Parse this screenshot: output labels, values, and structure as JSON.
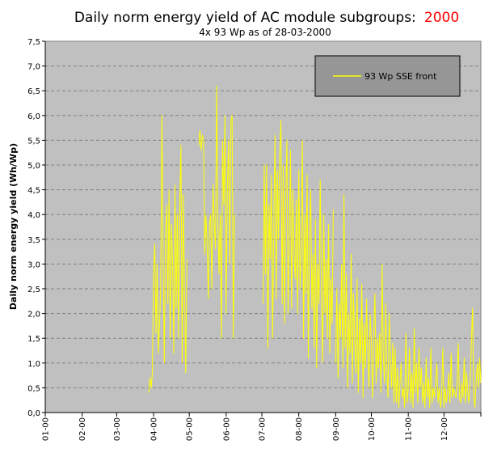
{
  "chart_data": {
    "type": "line",
    "title": "Daily norm energy yield of AC module subgroups:",
    "title_year": "2000",
    "subtitle": "4x 93 Wp as of 28-03-2000",
    "ylabel": "Daily norm energy yield (Wh/Wp)",
    "xlabel": "",
    "ylim": [
      0,
      7.5
    ],
    "xlim": [
      0,
      366
    ],
    "y_ticks": [
      "0,0",
      "0,5",
      "1,0",
      "1,5",
      "2,0",
      "2,5",
      "3,0",
      "3,5",
      "4,0",
      "4,5",
      "5,0",
      "5,5",
      "6,0",
      "6,5",
      "7,0",
      "7,5"
    ],
    "x_ticks": [
      "01-00",
      "02-00",
      "03-00",
      "04-00",
      "05-00",
      "06-00",
      "07-00",
      "08-00",
      "09-00",
      "10-00",
      "11-00",
      "12-00"
    ],
    "grid": true,
    "legend_position": "top-right",
    "colors": {
      "plot_background": "#c0c0c0",
      "line": "#ffff00",
      "grid": "#808080",
      "legend_background": "#969696",
      "title_year": "#ff0000"
    },
    "series": [
      {
        "name": "93 Wp SSE front",
        "x_unit": "day of year 2000",
        "points": [
          [
            87,
            0.4
          ],
          [
            88,
            0.7
          ],
          [
            89,
            0.5
          ],
          [
            90,
            0.8
          ],
          [
            91,
            2.8
          ],
          [
            92,
            3.4
          ],
          [
            93,
            1.6
          ],
          [
            94,
            3.0
          ],
          [
            95,
            1.2
          ],
          [
            96,
            1.8
          ],
          [
            97,
            2.5
          ],
          [
            98,
            6.0
          ],
          [
            99,
            3.2
          ],
          [
            100,
            1.0
          ],
          [
            101,
            3.5
          ],
          [
            102,
            4.2
          ],
          [
            103,
            2.2
          ],
          [
            104,
            4.5
          ],
          [
            105,
            1.5
          ],
          [
            106,
            3.8
          ],
          [
            107,
            3.0
          ],
          [
            108,
            1.2
          ],
          [
            109,
            4.6
          ],
          [
            110,
            2.1
          ],
          [
            111,
            4.0
          ],
          [
            112,
            1.5
          ],
          [
            113,
            4.2
          ],
          [
            114,
            5.4
          ],
          [
            115,
            1.0
          ],
          [
            116,
            4.4
          ],
          [
            117,
            2.5
          ],
          [
            118,
            0.8
          ],
          [
            119,
            3.1
          ],
          [
            129,
            5.4
          ],
          [
            130,
            5.7
          ],
          [
            131,
            5.3
          ],
          [
            132,
            5.6
          ],
          [
            133,
            5.5
          ],
          [
            134,
            3.2
          ],
          [
            135,
            4.0
          ],
          [
            136,
            3.4
          ],
          [
            137,
            2.3
          ],
          [
            138,
            3.8
          ],
          [
            139,
            4.0
          ],
          [
            140,
            2.5
          ],
          [
            141,
            4.6
          ],
          [
            142,
            3.8
          ],
          [
            143,
            3.3
          ],
          [
            144,
            6.6
          ],
          [
            145,
            3.9
          ],
          [
            146,
            2.8
          ],
          [
            147,
            4.0
          ],
          [
            148,
            1.5
          ],
          [
            149,
            5.5
          ],
          [
            150,
            4.2
          ],
          [
            151,
            6.0
          ],
          [
            152,
            2.0
          ],
          [
            153,
            4.5
          ],
          [
            154,
            5.5
          ],
          [
            155,
            3.0
          ],
          [
            156,
            5.9
          ],
          [
            157,
            6.0
          ],
          [
            158,
            1.5
          ],
          [
            159,
            4.0
          ],
          [
            183,
            2.2
          ],
          [
            184,
            5.0
          ],
          [
            185,
            2.8
          ],
          [
            186,
            5.0
          ],
          [
            187,
            1.3
          ],
          [
            188,
            4.2
          ],
          [
            189,
            3.1
          ],
          [
            190,
            4.8
          ],
          [
            191,
            1.5
          ],
          [
            192,
            3.8
          ],
          [
            193,
            5.6
          ],
          [
            194,
            2.3
          ],
          [
            195,
            4.9
          ],
          [
            196,
            3.5
          ],
          [
            197,
            5.2
          ],
          [
            198,
            5.9
          ],
          [
            199,
            2.2
          ],
          [
            200,
            5.0
          ],
          [
            201,
            1.8
          ],
          [
            202,
            4.3
          ],
          [
            203,
            5.5
          ],
          [
            204,
            2.0
          ],
          [
            205,
            3.5
          ],
          [
            206,
            5.3
          ],
          [
            207,
            2.1
          ],
          [
            208,
            4.5
          ],
          [
            209,
            3.2
          ],
          [
            210,
            2.7
          ],
          [
            211,
            4.3
          ],
          [
            212,
            2.0
          ],
          [
            213,
            4.9
          ],
          [
            214,
            2.5
          ],
          [
            215,
            3.3
          ],
          [
            216,
            5.5
          ],
          [
            217,
            1.5
          ],
          [
            218,
            4.0
          ],
          [
            219,
            2.4
          ],
          [
            220,
            4.8
          ],
          [
            221,
            1.1
          ],
          [
            222,
            3.6
          ],
          [
            223,
            4.5
          ],
          [
            224,
            2.1
          ],
          [
            225,
            3.2
          ],
          [
            226,
            1.3
          ],
          [
            227,
            3.9
          ],
          [
            228,
            0.9
          ],
          [
            229,
            3.0
          ],
          [
            230,
            2.2
          ],
          [
            231,
            4.7
          ],
          [
            232,
            2.5
          ],
          [
            233,
            1.0
          ],
          [
            234,
            4.0
          ],
          [
            235,
            2.0
          ],
          [
            236,
            3.1
          ],
          [
            237,
            1.5
          ],
          [
            238,
            3.8
          ],
          [
            239,
            1.2
          ],
          [
            240,
            2.7
          ],
          [
            241,
            1.8
          ],
          [
            242,
            4.1
          ],
          [
            244,
            1.0
          ],
          [
            245,
            2.5
          ],
          [
            246,
            0.7
          ],
          [
            247,
            2.2
          ],
          [
            248,
            1.5
          ],
          [
            249,
            3.0
          ],
          [
            250,
            0.9
          ],
          [
            251,
            4.4
          ],
          [
            252,
            1.3
          ],
          [
            253,
            2.8
          ],
          [
            254,
            0.5
          ],
          [
            255,
            2.0
          ],
          [
            256,
            1.2
          ],
          [
            257,
            3.2
          ],
          [
            258,
            0.6
          ],
          [
            259,
            2.4
          ],
          [
            260,
            1.5
          ],
          [
            261,
            0.8
          ],
          [
            262,
            2.7
          ],
          [
            263,
            0.4
          ],
          [
            264,
            1.9
          ],
          [
            265,
            1.0
          ],
          [
            266,
            2.6
          ],
          [
            267,
            0.3
          ],
          [
            268,
            1.8
          ],
          [
            269,
            0.9
          ],
          [
            270,
            2.3
          ],
          [
            271,
            1.2
          ],
          [
            272,
            0.5
          ],
          [
            273,
            2.0
          ],
          [
            274,
            1.4
          ],
          [
            275,
            0.3
          ],
          [
            276,
            1.7
          ],
          [
            277,
            2.4
          ],
          [
            278,
            0.6
          ],
          [
            279,
            1.5
          ],
          [
            280,
            0.9
          ],
          [
            281,
            1.6
          ],
          [
            282,
            0.4
          ],
          [
            283,
            3.0
          ],
          [
            284,
            1.2
          ],
          [
            285,
            0.6
          ],
          [
            286,
            2.2
          ],
          [
            287,
            0.9
          ],
          [
            288,
            0.3
          ],
          [
            289,
            2.0
          ],
          [
            290,
            1.1
          ],
          [
            291,
            0.5
          ],
          [
            292,
            1.4
          ],
          [
            293,
            0.2
          ],
          [
            294,
            1.3
          ],
          [
            295,
            0.2
          ],
          [
            296,
            0.9
          ],
          [
            297,
            0.1
          ],
          [
            298,
            0.6
          ],
          [
            299,
            1.0
          ],
          [
            300,
            0.3
          ],
          [
            301,
            0.5
          ],
          [
            302,
            0.1
          ],
          [
            303,
            1.6
          ],
          [
            304,
            0.2
          ],
          [
            305,
            0.5
          ],
          [
            306,
            1.3
          ],
          [
            307,
            0.2
          ],
          [
            308,
            0.8
          ],
          [
            309,
            0.1
          ],
          [
            310,
            1.7
          ],
          [
            311,
            0.4
          ],
          [
            312,
            1.0
          ],
          [
            313,
            0.2
          ],
          [
            314,
            1.3
          ],
          [
            315,
            0.5
          ],
          [
            316,
            0.9
          ],
          [
            317,
            0.2
          ],
          [
            318,
            0.6
          ],
          [
            319,
            0.1
          ],
          [
            320,
            1.1
          ],
          [
            321,
            0.3
          ],
          [
            322,
            0.7
          ],
          [
            323,
            0.1
          ],
          [
            324,
            1.3
          ],
          [
            325,
            0.2
          ],
          [
            326,
            0.5
          ],
          [
            327,
            0.3
          ],
          [
            328,
            0.6
          ],
          [
            329,
            1.0
          ],
          [
            330,
            0.2
          ],
          [
            331,
            0.5
          ],
          [
            332,
            0.1
          ],
          [
            333,
            0.3
          ],
          [
            334,
            1.3
          ],
          [
            335,
            0.1
          ],
          [
            336,
            0.5
          ],
          [
            337,
            0.2
          ],
          [
            338,
            0.4
          ],
          [
            339,
            0.8
          ],
          [
            340,
            0.2
          ],
          [
            341,
            1.2
          ],
          [
            342,
            0.3
          ],
          [
            343,
            0.5
          ],
          [
            344,
            0.4
          ],
          [
            345,
            0.3
          ],
          [
            346,
            0.6
          ],
          [
            347,
            1.4
          ],
          [
            348,
            0.3
          ],
          [
            349,
            0.2
          ],
          [
            350,
            0.6
          ],
          [
            351,
            0.3
          ],
          [
            352,
            1.1
          ],
          [
            353,
            0.2
          ],
          [
            354,
            0.8
          ],
          [
            355,
            0.4
          ],
          [
            356,
            0.2
          ],
          [
            357,
            0.6
          ],
          [
            358,
            1.4
          ],
          [
            359,
            2.1
          ],
          [
            360,
            0.3
          ],
          [
            361,
            0.1
          ],
          [
            362,
            0.6
          ],
          [
            363,
            1.0
          ],
          [
            364,
            0.5
          ],
          [
            365,
            1.1
          ],
          [
            366,
            0.6
          ]
        ]
      }
    ]
  }
}
